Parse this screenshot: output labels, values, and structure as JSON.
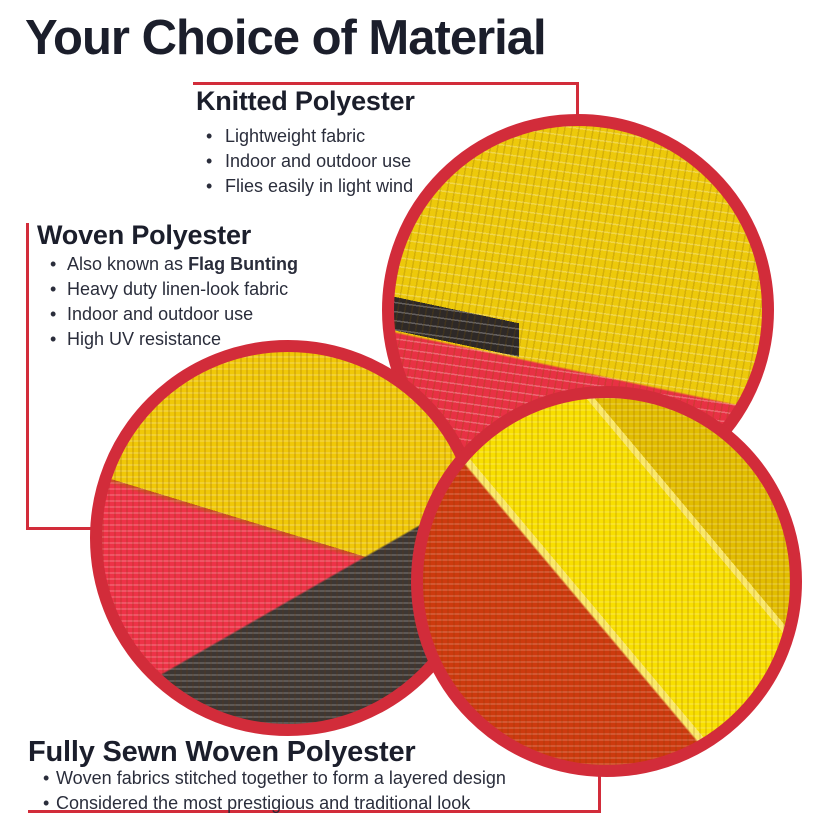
{
  "title": "Your Choice of Material",
  "colors": {
    "accent_red": "#d22c3a",
    "heading_text": "#1b1e2b",
    "body_text": "#2a2d3b",
    "knitted_yellow": "#edc90b",
    "knitted_red": "#e83144",
    "knitted_black": "#2e2927",
    "woven_yellow": "#f0c808",
    "woven_red": "#ee3247",
    "woven_charcoal": "#3d3734",
    "sewn_yellow": "#e2bd00",
    "sewn_bright_yellow": "#f8df00",
    "sewn_orange_red": "#cd3a0e"
  },
  "sections": {
    "knitted": {
      "heading": "Knitted Polyester",
      "bullets": [
        "Lightweight fabric",
        "Indoor and outdoor use",
        "Flies easily in light wind"
      ]
    },
    "woven": {
      "heading": "Woven Polyester",
      "bullets": [
        {
          "segments": [
            {
              "t": "Also known as "
            },
            {
              "t": "Flag Bunting",
              "b": true
            }
          ]
        },
        "Heavy duty linen-look fabric",
        "Indoor and outdoor use",
        "High UV resistance"
      ]
    },
    "fully_sewn": {
      "heading": "Fully Sewn Woven Polyester",
      "bullets": [
        "Woven fabrics stitched together to form a layered design",
        "Considered the most prestigious and traditional look"
      ]
    }
  },
  "swatches": {
    "knitted": "knitted-polyester-fabric-closeup",
    "woven": "woven-polyester-fabric-closeup",
    "fully_sewn": "fully-sewn-woven-polyester-fabric-closeup"
  }
}
